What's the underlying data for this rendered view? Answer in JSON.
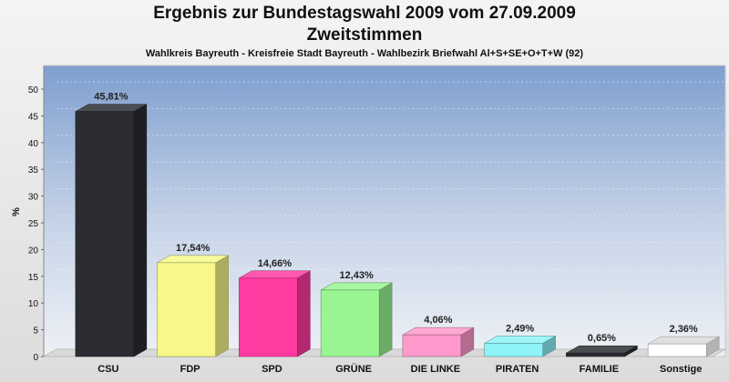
{
  "title": "Ergebnis zur Bundestagswahl 2009 vom 27.09.2009",
  "subtitle": "Zweitstimmen",
  "caption": "Wahlkreis Bayreuth - Kreisfreie Stadt Bayreuth - Wahlbezirk Briefwahl Al+S+SE+O+T+W (92)",
  "chart_data": {
    "type": "bar",
    "title": "Ergebnis zur Bundestagswahl 2009 vom 27.09.2009",
    "subtitle": "Zweitstimmen",
    "ylabel": "%",
    "xlabel": "",
    "ylim": [
      0,
      50
    ],
    "yticks": [
      0,
      5,
      10,
      15,
      20,
      25,
      30,
      35,
      40,
      45,
      50
    ],
    "grid": true,
    "categories": [
      "CSU",
      "FDP",
      "SPD",
      "GRÜNE",
      "DIE LINKE",
      "PIRATEN",
      "FAMILIE",
      "Sonstige"
    ],
    "values": [
      45.81,
      17.54,
      14.66,
      12.43,
      4.06,
      2.49,
      0.65,
      2.36
    ],
    "value_labels": [
      "45,81%",
      "17,54%",
      "14,66%",
      "12,43%",
      "4,06%",
      "2,49%",
      "0,65%",
      "2,36%"
    ],
    "colors": [
      "#2b2d33",
      "#f7f78a",
      "#ff3aa0",
      "#99f592",
      "#ff99cc",
      "#8df3f7",
      "#2b2d33",
      "#ffffff"
    ]
  }
}
